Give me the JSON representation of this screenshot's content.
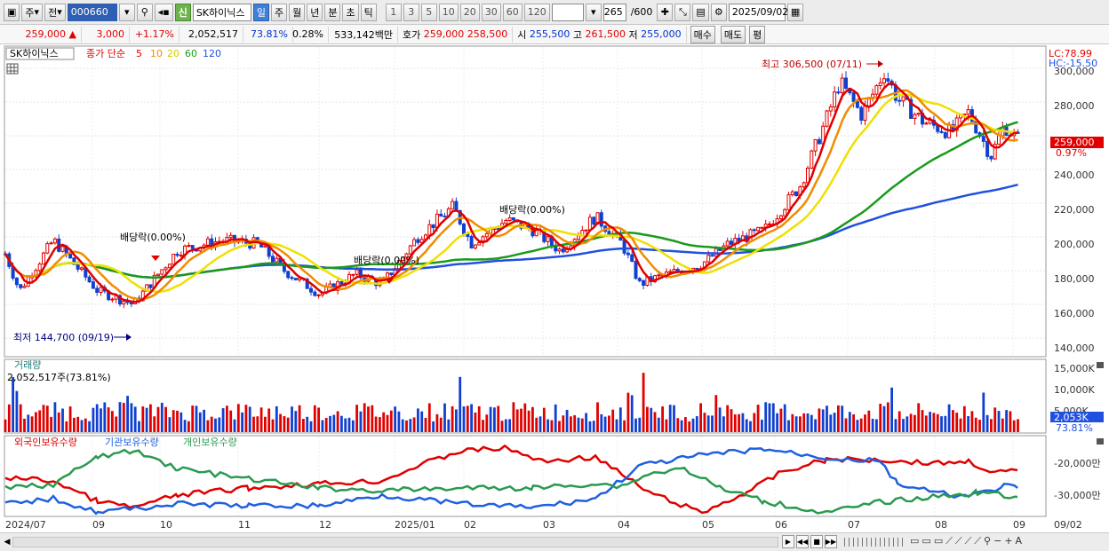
{
  "toolbar": {
    "period_main": "주",
    "prev_label": "전",
    "stock_code": "000660",
    "shin_label": "신",
    "stock_name": "SK하이닉스",
    "periods": [
      "일",
      "주",
      "월",
      "년",
      "분",
      "초",
      "틱"
    ],
    "active_period": "일",
    "intervals": [
      "1",
      "3",
      "5",
      "10",
      "20",
      "30",
      "60",
      "120"
    ],
    "count_value": "265",
    "count_total": "/600",
    "date_value": "2025/09/02"
  },
  "info": {
    "price": "259,000",
    "change": "3,000",
    "change_pct": "+1.17%",
    "volume": "2,052,517",
    "volume_ratio": "73.81%",
    "turnover": "0.28%",
    "amount": "533,142백만",
    "hoga_label": "호가",
    "ask": "259,000",
    "bid": "258,500",
    "open_label": "시",
    "open": "255,500",
    "high_label": "고",
    "high": "261,500",
    "low_label": "저",
    "low": "255,000",
    "buy_label": "매수",
    "sell_label": "매도",
    "eval_label": "평"
  },
  "price_panel": {
    "name_tag": "SK하이닉스",
    "ma_title": "종가 단순",
    "ma_periods": [
      "5",
      "10",
      "20",
      "60",
      "120"
    ],
    "lc_label": "LC:78.99",
    "hc_label": "HC:-15.50",
    "high_annotation": "최고 306,500 (07/11)",
    "low_annotation": "최저 144,700 (09/19)",
    "dividend_labels": [
      "배당락(0.00%)",
      "배당락(0.00%)",
      "배당락(0.00%)"
    ],
    "current_price_tag": "259,000",
    "current_pct_tag": "0.97%",
    "y_ticks": [
      "300,000",
      "280,000",
      "260,000",
      "240,000",
      "220,000",
      "200,000",
      "180,000",
      "160,000",
      "140,000"
    ]
  },
  "volume_panel": {
    "title": "거래량",
    "current": "2,052,517주(73.81%)",
    "y_ticks": [
      "15,000K",
      "10,000K",
      "5,000K"
    ],
    "tag_value": "2,053K",
    "tag_pct": "73.81%"
  },
  "holding_panel": {
    "legend": [
      "외국인보유수량",
      "기관보유수량",
      "개인보유수량"
    ],
    "y_ticks": [
      "-20,000만",
      "-30,000만"
    ]
  },
  "x_axis": {
    "labels": [
      "2024/07",
      "09",
      "10",
      "11",
      "12",
      "2025/01",
      "02",
      "03",
      "04",
      "05",
      "06",
      "07",
      "08",
      "09"
    ],
    "right_label": "09/02"
  },
  "colors": {
    "ma5": "#e00000",
    "ma10": "#f08c00",
    "ma20": "#f0e000",
    "ma60": "#1a9a1a",
    "ma120": "#2050e0",
    "up": "#e00000",
    "down": "#1040d0",
    "foreign": "#e00000",
    "institution": "#2060e0",
    "individual": "#2a9a50"
  }
}
